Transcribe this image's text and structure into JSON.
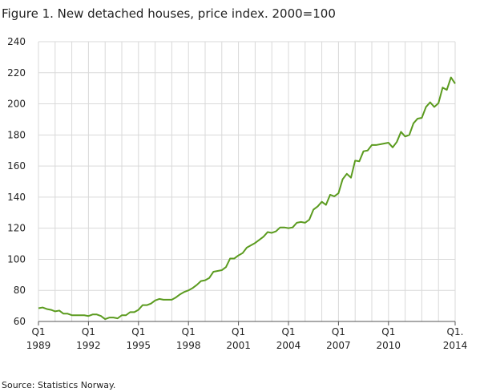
{
  "chart_data": {
    "type": "line",
    "title": "Figure 1. New detached houses, price index. 2000=100",
    "source": "Source: Statistics Norway.",
    "categories": [
      "Q1\n1989",
      null,
      null,
      null,
      null,
      null,
      null,
      null,
      null,
      null,
      null,
      null,
      "Q1\n1992",
      null,
      null,
      null,
      null,
      null,
      null,
      null,
      null,
      null,
      null,
      null,
      "Q1\n1995",
      null,
      null,
      null,
      null,
      null,
      null,
      null,
      null,
      null,
      null,
      null,
      "Q1\n1998",
      null,
      null,
      null,
      null,
      null,
      null,
      null,
      null,
      null,
      null,
      null,
      "Q1\n2001",
      null,
      null,
      null,
      null,
      null,
      null,
      null,
      null,
      null,
      null,
      null,
      "Q1\n2004",
      null,
      null,
      null,
      null,
      null,
      null,
      null,
      null,
      null,
      null,
      null,
      "Q1\n2007",
      null,
      null,
      null,
      null,
      null,
      null,
      null,
      null,
      null,
      null,
      null,
      "Q1\n2010",
      null,
      null,
      null,
      null,
      null,
      null,
      null,
      null,
      null,
      null,
      null,
      null,
      null,
      null,
      null,
      "Q1.\n2014"
    ],
    "series": [
      {
        "name": "Price index",
        "color": "#5b9b1f",
        "values": [
          68.5,
          69,
          68,
          67.5,
          66.5,
          67,
          65,
          65,
          64,
          64,
          64,
          64,
          63.5,
          64.5,
          64.5,
          63.5,
          61.5,
          62.5,
          62.5,
          62,
          64,
          64,
          66,
          66,
          67.5,
          70.5,
          70.5,
          71.5,
          73.5,
          74.5,
          74,
          74,
          74,
          75.5,
          77.5,
          79,
          80,
          81.5,
          83.5,
          86,
          86.5,
          88,
          92,
          92.5,
          93,
          95,
          100.5,
          100.5,
          102.5,
          104,
          107.5,
          109,
          110.5,
          112.5,
          114.5,
          117.5,
          117,
          118,
          120.5,
          120.5,
          120,
          120.5,
          123.5,
          124,
          123.5,
          125.5,
          132,
          134,
          137,
          135,
          141.5,
          140.5,
          142.5,
          151.5,
          155,
          152.5,
          163.5,
          163,
          169.5,
          170,
          173.5,
          173.5,
          174,
          174.5,
          175,
          172,
          175.5,
          182,
          179,
          180,
          187.5,
          190.5,
          191,
          198,
          201,
          198,
          200.5,
          210.5,
          209,
          217,
          213
        ]
      }
    ],
    "ylim": [
      60,
      240
    ],
    "yticks": [
      60,
      80,
      100,
      120,
      140,
      160,
      180,
      200,
      220,
      240
    ],
    "grid": true
  }
}
